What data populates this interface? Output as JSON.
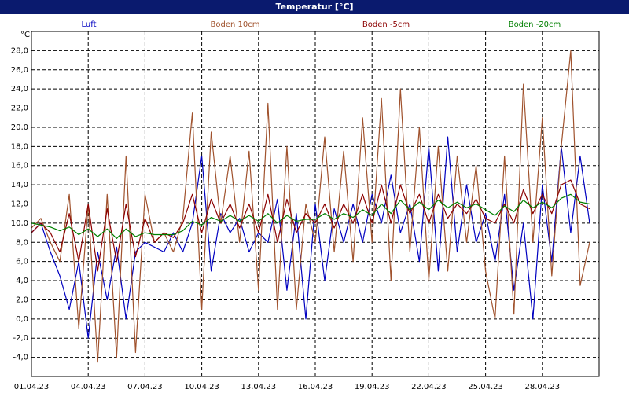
{
  "window": {
    "title": "Temperatur [°C]"
  },
  "chart_data": {
    "type": "line",
    "title": "Temperatur [°C]",
    "ylabel": "°C",
    "ylim": [
      -6,
      30
    ],
    "grid": true,
    "legend_position": "top",
    "x_ticks": [
      "01.04.23",
      "04.04.23",
      "07.04.23",
      "10.04.23",
      "13.04.23",
      "16.04.23",
      "19.04.23",
      "22.04.23",
      "25.04.23",
      "28.04.23"
    ],
    "y_ticks": [
      "28,0",
      "26,0",
      "24,0",
      "22,0",
      "20,0",
      "18,0",
      "16,0",
      "14,0",
      "12,0",
      "10,0",
      "8,0",
      "6,0",
      "4,0",
      "2,0",
      "0,0",
      "-2,0",
      "-4,0"
    ],
    "x_days": [
      1,
      1.5,
      2,
      2.5,
      3,
      3.5,
      4,
      4.5,
      5,
      5.5,
      6,
      6.5,
      7,
      7.5,
      8,
      8.5,
      9,
      9.5,
      10,
      10.5,
      11,
      11.5,
      12,
      12.5,
      13,
      13.5,
      14,
      14.5,
      15,
      15.5,
      16,
      16.5,
      17,
      17.5,
      18,
      18.5,
      19,
      19.5,
      20,
      20.5,
      21,
      21.5,
      22,
      22.5,
      23,
      23.5,
      24,
      24.5,
      25,
      25.5,
      26,
      26.5,
      27,
      27.5,
      28,
      28.5,
      29,
      29.5,
      30,
      30.5
    ],
    "series": [
      {
        "name": "Luft",
        "color": "#0000c0",
        "values": [
          9.0,
          10.0,
          7.0,
          4.5,
          1.0,
          6.0,
          -2.0,
          7.0,
          2.0,
          7.5,
          0.0,
          7.0,
          8.0,
          7.5,
          7.0,
          9.0,
          7.0,
          10.0,
          17.0,
          5.0,
          11.0,
          9.0,
          10.5,
          7.0,
          9.0,
          8.0,
          12.5,
          3.0,
          11.0,
          0.0,
          12.0,
          4.0,
          11.5,
          8.0,
          12.0,
          8.0,
          13.0,
          10.0,
          15.0,
          9.0,
          12.0,
          6.0,
          18.0,
          5.0,
          19.0,
          7.0,
          14.0,
          8.0,
          11.0,
          6.0,
          13.0,
          3.0,
          10.0,
          0.0,
          14.0,
          6.0,
          18.0,
          9.0,
          17.0,
          10.0
        ]
      },
      {
        "name": "Boden 10cm",
        "color": "#a0522d",
        "values": [
          9.5,
          10.5,
          8.0,
          6.0,
          13.0,
          -1.0,
          12.0,
          -4.5,
          13.0,
          -4.0,
          17.0,
          -3.5,
          13.0,
          8.0,
          9.0,
          7.0,
          10.5,
          21.5,
          1.0,
          19.5,
          10.0,
          17.0,
          8.0,
          17.5,
          3.0,
          22.5,
          1.0,
          18.0,
          1.0,
          12.0,
          8.0,
          19.0,
          7.0,
          17.5,
          6.0,
          21.0,
          8.0,
          23.0,
          4.0,
          24.0,
          7.0,
          20.0,
          4.0,
          18.0,
          5.0,
          17.0,
          8.0,
          16.0,
          5.0,
          0.0,
          17.0,
          0.5,
          24.5,
          8.0,
          21.0,
          4.5,
          18.0,
          28.0,
          3.5,
          8.0
        ]
      },
      {
        "name": "Boden -5cm",
        "color": "#8b0000",
        "values": [
          9.0,
          10.0,
          9.0,
          7.0,
          11.0,
          6.0,
          12.0,
          5.0,
          11.5,
          6.0,
          12.0,
          6.5,
          10.5,
          8.0,
          9.0,
          8.5,
          10.0,
          13.0,
          9.0,
          12.5,
          10.0,
          12.0,
          9.5,
          12.0,
          9.0,
          13.0,
          8.0,
          12.5,
          9.0,
          11.0,
          10.0,
          12.0,
          9.5,
          12.0,
          10.0,
          13.0,
          10.0,
          14.0,
          10.0,
          14.0,
          11.0,
          13.0,
          10.0,
          13.0,
          10.5,
          12.0,
          11.0,
          12.5,
          10.5,
          10.0,
          12.0,
          10.0,
          13.5,
          11.0,
          13.0,
          11.0,
          14.0,
          14.5,
          12.0,
          11.5
        ]
      },
      {
        "name": "Boden -20cm",
        "color": "#008000",
        "values": [
          10.0,
          9.8,
          9.6,
          9.2,
          9.6,
          8.8,
          9.4,
          8.6,
          9.4,
          8.4,
          9.4,
          8.6,
          9.0,
          8.8,
          8.8,
          8.8,
          9.2,
          10.2,
          9.8,
          10.6,
          10.2,
          10.8,
          10.2,
          10.8,
          10.2,
          11.0,
          10.0,
          10.8,
          10.2,
          10.4,
          10.4,
          11.0,
          10.4,
          11.0,
          10.6,
          11.4,
          10.8,
          12.0,
          11.0,
          12.4,
          11.4,
          12.2,
          11.4,
          12.4,
          11.6,
          12.2,
          11.6,
          12.0,
          11.4,
          10.8,
          11.8,
          11.2,
          12.4,
          11.6,
          12.2,
          11.6,
          12.6,
          13.0,
          12.2,
          12.0
        ]
      }
    ]
  }
}
